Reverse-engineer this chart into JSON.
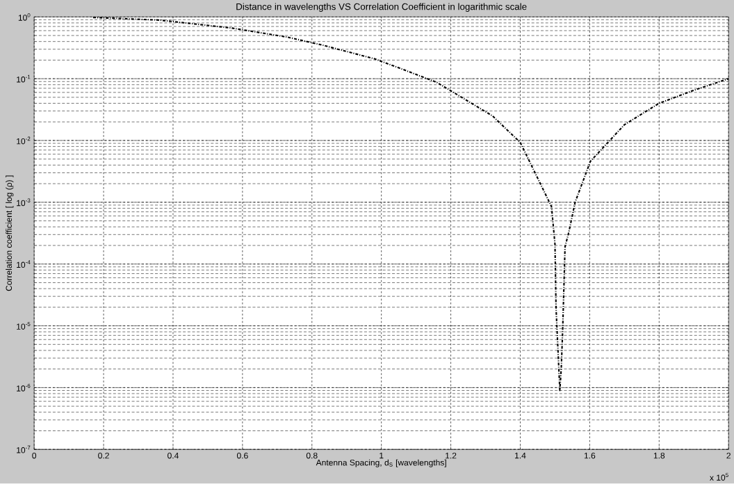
{
  "chart_data": {
    "type": "line",
    "title": "Distance in wavelengths VS Correlation Coefficient in logarithmic scale",
    "xlabel": "Antenna Spacing, d$_{S}$ [wavelengths]",
    "ylabel": "Correlation coefficient [ log (ρ) ]",
    "annotations": [
      "x 10$^{5}$"
    ],
    "log": "y",
    "grid": true,
    "line_style": "dashdot",
    "xlim": [
      0,
      2
    ],
    "ylim": [
      1e-07,
      1
    ],
    "xticks": [
      0,
      0.2,
      0.4,
      0.6,
      0.8,
      1,
      1.2,
      1.4,
      1.6,
      1.8,
      2
    ],
    "yticks": [
      {
        "value": 1e-07,
        "label": "10$^{-7}$"
      },
      {
        "value": 1e-06,
        "label": "10$^{-6}$"
      },
      {
        "value": 1e-05,
        "label": "10$^{-5}$"
      },
      {
        "value": 0.0001,
        "label": "10$^{-4}$"
      },
      {
        "value": 0.001,
        "label": "10$^{-3}$"
      },
      {
        "value": 0.01,
        "label": "10$^{-2}$"
      },
      {
        "value": 0.1,
        "label": "10$^{-1}$"
      },
      {
        "value": 1,
        "label": "10$^{0}$"
      }
    ],
    "series": [
      {
        "color": "#000000",
        "x": [
          0.17,
          0.36,
          0.57,
          0.73,
          0.83,
          0.98,
          1.05,
          1.16,
          1.32,
          1.4,
          1.49,
          1.5,
          1.503,
          1.514,
          1.518,
          1.522,
          1.529,
          1.54,
          1.558,
          1.602,
          1.7,
          1.8,
          1.9,
          2
        ],
        "values": [
          0.98,
          0.89,
          0.66,
          0.47,
          0.35,
          0.21,
          0.15,
          0.087,
          0.025,
          0.0093,
          0.00085,
          0.00021,
          2e-05,
          9e-07,
          2e-06,
          7.9e-06,
          0.00019,
          0.00033,
          0.001,
          0.0046,
          0.018,
          0.04,
          0.065,
          0.1
        ]
      }
    ]
  }
}
